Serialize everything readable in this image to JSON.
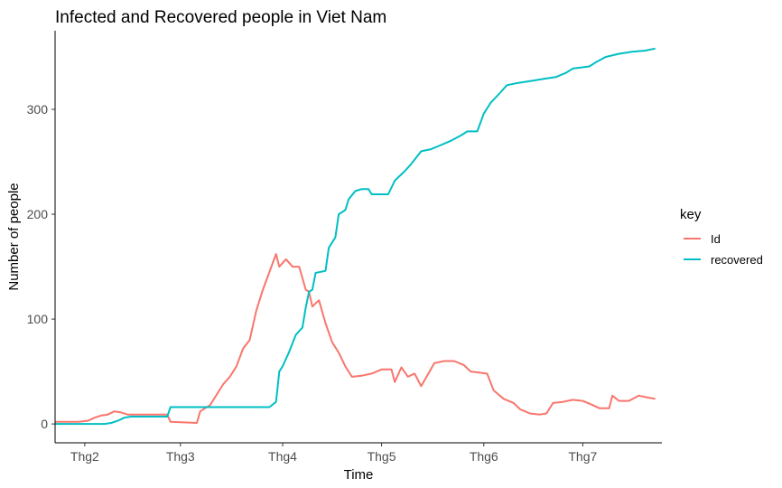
{
  "chart_data": {
    "type": "line",
    "title": "Infected and Recovered people in Viet Nam",
    "xlabel": "Time",
    "ylabel": "Number of people",
    "x_ticks": [
      "Thg2",
      "Thg3",
      "Thg4",
      "Thg5",
      "Thg6",
      "Thg7"
    ],
    "x_tick_dates": [
      "2020-02-01",
      "2020-03-01",
      "2020-04-01",
      "2020-05-01",
      "2020-06-01",
      "2020-07-01"
    ],
    "xlim": [
      "2020-01-23",
      "2020-07-25"
    ],
    "y_ticks": [
      0,
      100,
      200,
      300
    ],
    "ylim": [
      -18,
      375
    ],
    "grid": false,
    "legend": {
      "title": "key",
      "position": "right"
    },
    "series": [
      {
        "name": "Id",
        "color": "#F8766D",
        "points": [
          [
            "2020-01-23",
            2
          ],
          [
            "2020-01-30",
            2
          ],
          [
            "2020-02-02",
            3
          ],
          [
            "2020-02-04",
            6
          ],
          [
            "2020-02-06",
            8
          ],
          [
            "2020-02-08",
            9
          ],
          [
            "2020-02-10",
            12
          ],
          [
            "2020-02-12",
            11
          ],
          [
            "2020-02-14",
            9
          ],
          [
            "2020-02-26",
            9
          ],
          [
            "2020-02-27",
            2
          ],
          [
            "2020-03-06",
            1
          ],
          [
            "2020-03-07",
            12
          ],
          [
            "2020-03-10",
            18
          ],
          [
            "2020-03-12",
            28
          ],
          [
            "2020-03-14",
            38
          ],
          [
            "2020-03-16",
            45
          ],
          [
            "2020-03-18",
            55
          ],
          [
            "2020-03-20",
            72
          ],
          [
            "2020-03-22",
            80
          ],
          [
            "2020-03-24",
            108
          ],
          [
            "2020-03-26",
            128
          ],
          [
            "2020-03-28",
            145
          ],
          [
            "2020-03-30",
            162
          ],
          [
            "2020-03-31",
            150
          ],
          [
            "2020-04-02",
            157
          ],
          [
            "2020-04-04",
            150
          ],
          [
            "2020-04-06",
            150
          ],
          [
            "2020-04-08",
            128
          ],
          [
            "2020-04-09",
            126
          ],
          [
            "2020-04-10",
            112
          ],
          [
            "2020-04-12",
            118
          ],
          [
            "2020-04-14",
            96
          ],
          [
            "2020-04-16",
            78
          ],
          [
            "2020-04-18",
            68
          ],
          [
            "2020-04-20",
            55
          ],
          [
            "2020-04-22",
            45
          ],
          [
            "2020-04-25",
            46
          ],
          [
            "2020-04-28",
            48
          ],
          [
            "2020-05-01",
            52
          ],
          [
            "2020-05-04",
            52
          ],
          [
            "2020-05-05",
            40
          ],
          [
            "2020-05-07",
            54
          ],
          [
            "2020-05-09",
            45
          ],
          [
            "2020-05-11",
            48
          ],
          [
            "2020-05-13",
            36
          ],
          [
            "2020-05-15",
            47
          ],
          [
            "2020-05-17",
            58
          ],
          [
            "2020-05-20",
            60
          ],
          [
            "2020-05-23",
            60
          ],
          [
            "2020-05-26",
            56
          ],
          [
            "2020-05-28",
            50
          ],
          [
            "2020-06-02",
            48
          ],
          [
            "2020-06-04",
            32
          ],
          [
            "2020-06-07",
            24
          ],
          [
            "2020-06-10",
            20
          ],
          [
            "2020-06-12",
            14
          ],
          [
            "2020-06-15",
            10
          ],
          [
            "2020-06-18",
            9
          ],
          [
            "2020-06-20",
            10
          ],
          [
            "2020-06-22",
            20
          ],
          [
            "2020-06-25",
            21
          ],
          [
            "2020-06-28",
            23
          ],
          [
            "2020-07-01",
            22
          ],
          [
            "2020-07-04",
            18
          ],
          [
            "2020-07-06",
            15
          ],
          [
            "2020-07-09",
            15
          ],
          [
            "2020-07-10",
            27
          ],
          [
            "2020-07-12",
            22
          ],
          [
            "2020-07-15",
            22
          ],
          [
            "2020-07-18",
            27
          ],
          [
            "2020-07-21",
            25
          ],
          [
            "2020-07-23",
            24
          ]
        ]
      },
      {
        "name": "recovered",
        "color": "#00BFC4",
        "points": [
          [
            "2020-01-23",
            0
          ],
          [
            "2020-02-07",
            0
          ],
          [
            "2020-02-09",
            1
          ],
          [
            "2020-02-11",
            3
          ],
          [
            "2020-02-13",
            6
          ],
          [
            "2020-02-15",
            7
          ],
          [
            "2020-02-26",
            7
          ],
          [
            "2020-02-27",
            16
          ],
          [
            "2020-03-28",
            16
          ],
          [
            "2020-03-30",
            21
          ],
          [
            "2020-03-31",
            50
          ],
          [
            "2020-04-01",
            55
          ],
          [
            "2020-04-03",
            69
          ],
          [
            "2020-04-05",
            85
          ],
          [
            "2020-04-07",
            92
          ],
          [
            "2020-04-08",
            111
          ],
          [
            "2020-04-09",
            126
          ],
          [
            "2020-04-10",
            128
          ],
          [
            "2020-04-11",
            144
          ],
          [
            "2020-04-14",
            146
          ],
          [
            "2020-04-15",
            168
          ],
          [
            "2020-04-17",
            178
          ],
          [
            "2020-04-18",
            200
          ],
          [
            "2020-04-20",
            204
          ],
          [
            "2020-04-21",
            214
          ],
          [
            "2020-04-23",
            222
          ],
          [
            "2020-04-25",
            224
          ],
          [
            "2020-04-27",
            224
          ],
          [
            "2020-04-28",
            219
          ],
          [
            "2020-05-03",
            219
          ],
          [
            "2020-05-05",
            232
          ],
          [
            "2020-05-08",
            241
          ],
          [
            "2020-05-10",
            248
          ],
          [
            "2020-05-13",
            260
          ],
          [
            "2020-05-16",
            262
          ],
          [
            "2020-05-19",
            266
          ],
          [
            "2020-05-22",
            270
          ],
          [
            "2020-05-25",
            275
          ],
          [
            "2020-05-27",
            279
          ],
          [
            "2020-05-30",
            279
          ],
          [
            "2020-06-01",
            296
          ],
          [
            "2020-06-03",
            306
          ],
          [
            "2020-06-06",
            316
          ],
          [
            "2020-06-08",
            323
          ],
          [
            "2020-06-11",
            325
          ],
          [
            "2020-06-15",
            327
          ],
          [
            "2020-06-19",
            329
          ],
          [
            "2020-06-23",
            331
          ],
          [
            "2020-06-26",
            335
          ],
          [
            "2020-06-28",
            339
          ],
          [
            "2020-07-03",
            341
          ],
          [
            "2020-07-05",
            345
          ],
          [
            "2020-07-08",
            350
          ],
          [
            "2020-07-12",
            353
          ],
          [
            "2020-07-16",
            355
          ],
          [
            "2020-07-20",
            356
          ],
          [
            "2020-07-23",
            358
          ]
        ]
      }
    ]
  }
}
